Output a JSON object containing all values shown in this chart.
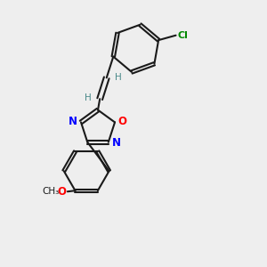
{
  "background_color": "#eeeeee",
  "bond_color": "#1a1a1a",
  "N_color": "#0000ff",
  "O_color": "#ff0000",
  "Cl_color": "#008800",
  "H_color": "#4a8a8a",
  "xlim": [
    -1.6,
    1.6
  ],
  "ylim": [
    -2.9,
    2.6
  ]
}
